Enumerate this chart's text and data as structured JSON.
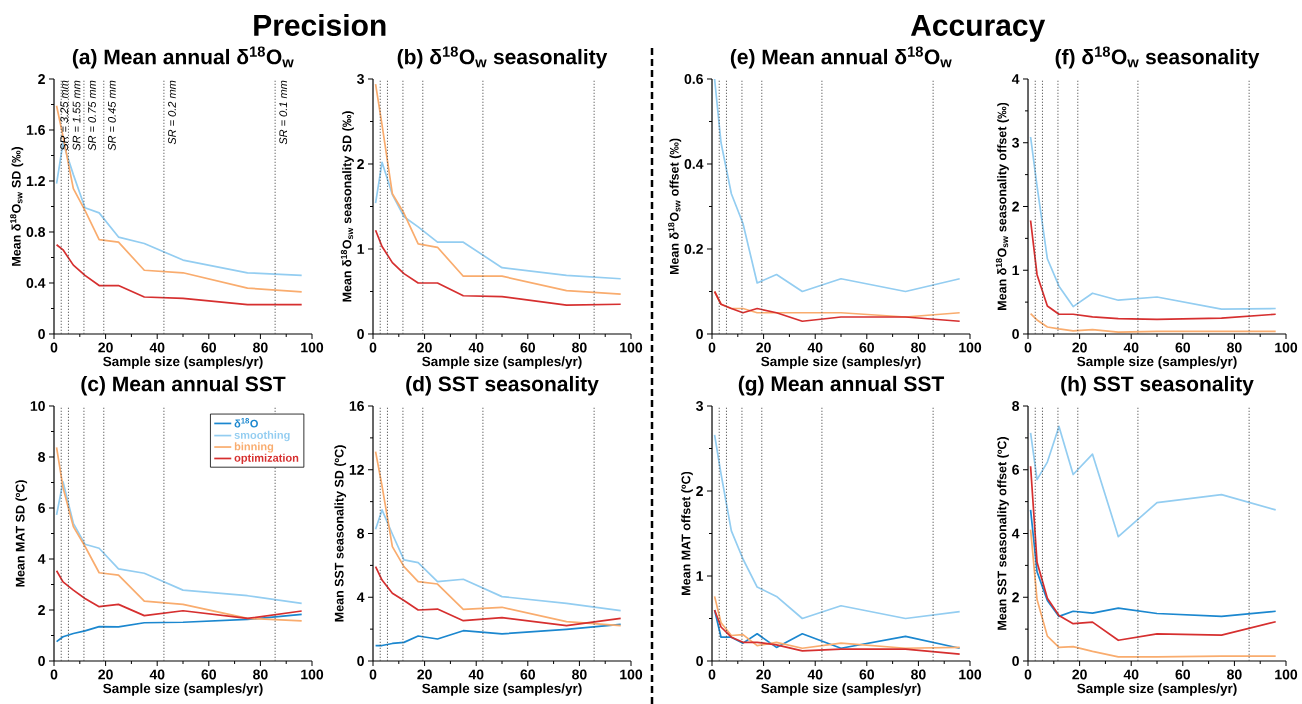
{
  "chart_data": [
    {
      "type": "line",
      "title": "(a) Mean annual δ$^{18}$O$_{w}$",
      "xlabel": "Sample size (samples/yr)",
      "ylabel": "Mean δ$^{18}$O$_{sw}$ SD (‰)",
      "annotations": [
        "Precision",
        {
          "text": "SR = 3.25 mm",
          "x": 2.8,
          "y": 2
        },
        {
          "text": "SR = 1.55 mm",
          "x": 5.6,
          "y": 2
        },
        {
          "text": "SR = 0.75 mm",
          "x": 11.6,
          "y": 2
        },
        {
          "text": "SR = 0.45 mm",
          "x": 19.3,
          "y": 2
        },
        {
          "text": "SR = 0.2 mm",
          "x": 42.6,
          "y": 2
        },
        {
          "text": "SR = 0.1 mm",
          "x": 85.7,
          "y": 2
        }
      ],
      "x": [
        1,
        3.5,
        7.5,
        12,
        17.5,
        25,
        35,
        50,
        75,
        96
      ],
      "xlim": [
        0,
        100
      ],
      "xticks": [
        0,
        20,
        40,
        60,
        80,
        100
      ],
      "ylim": [
        0,
        2
      ],
      "yticks": [
        0,
        0.4,
        0.8,
        1.2,
        1.6,
        2
      ],
      "series": [
        {
          "color": "#93cdf1",
          "values": [
            1.18,
            1.5,
            1.25,
            0.99,
            0.95,
            0.76,
            0.71,
            0.58,
            0.48,
            0.46
          ]
        },
        {
          "color": "#f9ac6e",
          "values": [
            1.79,
            1.55,
            1.14,
            0.97,
            0.74,
            0.72,
            0.5,
            0.48,
            0.36,
            0.33
          ]
        },
        {
          "color": "#d62f2f",
          "values": [
            0.7,
            0.66,
            0.54,
            0.46,
            0.38,
            0.38,
            0.29,
            0.28,
            0.23,
            0.23
          ]
        }
      ],
      "ref_lines": [
        {
          "axis": "x",
          "value": 2.8,
          "line_style": "dotted"
        },
        {
          "axis": "x",
          "value": 5.6,
          "line_style": "dotted"
        },
        {
          "axis": "x",
          "value": 11.6,
          "line_style": "dotted"
        },
        {
          "axis": "x",
          "value": 19.3,
          "line_style": "dotted"
        },
        {
          "axis": "x",
          "value": 42.6,
          "line_style": "dotted"
        },
        {
          "axis": "x",
          "value": 85.7,
          "line_style": "dotted"
        }
      ]
    },
    {
      "type": "line",
      "title": "(b) δ$^{18}$O$_{w}$ seasonality",
      "xlabel": "Sample size (samples/yr)",
      "ylabel": "Mean δ$^{18}$O$_{sw}$ seasonality SD (‰)",
      "x": [
        1,
        3.5,
        7.5,
        12,
        17.5,
        25,
        35,
        50,
        75,
        96
      ],
      "xlim": [
        0,
        100
      ],
      "xticks": [
        0,
        20,
        40,
        60,
        80,
        100
      ],
      "ylim": [
        0,
        3
      ],
      "yticks": [
        0,
        1,
        2,
        3
      ],
      "series": [
        {
          "color": "#93cdf1",
          "values": [
            1.54,
            2.02,
            1.64,
            1.38,
            1.26,
            1.08,
            1.08,
            0.78,
            0.69,
            0.65
          ]
        },
        {
          "color": "#f9ac6e",
          "values": [
            2.94,
            2.46,
            1.65,
            1.42,
            1.06,
            1.02,
            0.68,
            0.68,
            0.51,
            0.47
          ]
        },
        {
          "color": "#d62f2f",
          "values": [
            1.22,
            1.03,
            0.84,
            0.71,
            0.6,
            0.6,
            0.45,
            0.44,
            0.34,
            0.35
          ]
        }
      ],
      "ref_lines": [
        {
          "axis": "x",
          "value": 2.8,
          "line_style": "dotted"
        },
        {
          "axis": "x",
          "value": 5.6,
          "line_style": "dotted"
        },
        {
          "axis": "x",
          "value": 11.6,
          "line_style": "dotted"
        },
        {
          "axis": "x",
          "value": 19.3,
          "line_style": "dotted"
        },
        {
          "axis": "x",
          "value": 42.6,
          "line_style": "dotted"
        },
        {
          "axis": "x",
          "value": 85.7,
          "line_style": "dotted"
        }
      ]
    },
    {
      "type": "line",
      "title": "(c) Mean annual SST",
      "xlabel": "Sample size (samples/yr)",
      "ylabel": "Mean MAT SD (ºC)",
      "legend": "top right",
      "x": [
        1,
        3.5,
        7.5,
        12,
        17.5,
        25,
        35,
        50,
        75,
        96
      ],
      "xlim": [
        0,
        100
      ],
      "xticks": [
        0,
        20,
        40,
        60,
        80,
        100
      ],
      "ylim": [
        0,
        10
      ],
      "yticks": [
        0,
        2,
        4,
        6,
        8,
        10
      ],
      "series": [
        {
          "name": "δ$^{18}$O",
          "color": "#1b87cf",
          "values": [
            0.76,
            0.95,
            1.08,
            1.18,
            1.35,
            1.34,
            1.5,
            1.52,
            1.63,
            1.83
          ]
        },
        {
          "name": "smoothing",
          "color": "#93cdf1",
          "values": [
            5.73,
            7.03,
            5.4,
            4.58,
            4.42,
            3.61,
            3.44,
            2.78,
            2.56,
            2.26
          ]
        },
        {
          "name": "binning",
          "color": "#f9ac6e",
          "values": [
            8.38,
            6.8,
            5.27,
            4.5,
            3.46,
            3.37,
            2.35,
            2.22,
            1.67,
            1.57
          ]
        },
        {
          "name": "optimization",
          "color": "#d62f2f",
          "values": [
            3.54,
            3.1,
            2.78,
            2.45,
            2.13,
            2.22,
            1.78,
            1.97,
            1.67,
            1.96
          ]
        }
      ],
      "ref_lines": [
        {
          "axis": "x",
          "value": 2.8,
          "line_style": "dotted"
        },
        {
          "axis": "x",
          "value": 5.6,
          "line_style": "dotted"
        },
        {
          "axis": "x",
          "value": 11.6,
          "line_style": "dotted"
        },
        {
          "axis": "x",
          "value": 19.3,
          "line_style": "dotted"
        },
        {
          "axis": "x",
          "value": 42.6,
          "line_style": "dotted"
        },
        {
          "axis": "x",
          "value": 85.7,
          "line_style": "dotted"
        }
      ]
    },
    {
      "type": "line",
      "title": "(d) SST seasonality",
      "xlabel": "Sample size (samples/yr)",
      "ylabel": "Mean SST seasonality SD (ºC)",
      "x": [
        1,
        3.5,
        7.5,
        12,
        17.5,
        25,
        35,
        50,
        75,
        96
      ],
      "xlim": [
        0,
        100
      ],
      "xticks": [
        0,
        20,
        40,
        60,
        80,
        100
      ],
      "ylim": [
        0,
        16
      ],
      "yticks": [
        0,
        4,
        8,
        12,
        16
      ],
      "series": [
        {
          "color": "#1b87cf",
          "values": [
            0.96,
            0.97,
            1.1,
            1.17,
            1.57,
            1.38,
            1.9,
            1.7,
            1.99,
            2.3
          ]
        },
        {
          "color": "#93cdf1",
          "values": [
            8.26,
            9.48,
            7.97,
            6.34,
            6.17,
            4.98,
            5.13,
            4.04,
            3.62,
            3.16
          ]
        },
        {
          "color": "#f9ac6e",
          "values": [
            13.14,
            10.98,
            7.18,
            5.92,
            4.98,
            4.83,
            3.24,
            3.37,
            2.47,
            2.22
          ]
        },
        {
          "color": "#d62f2f",
          "values": [
            5.92,
            5.08,
            4.25,
            3.8,
            3.2,
            3.26,
            2.53,
            2.72,
            2.22,
            2.68
          ]
        }
      ],
      "ref_lines": [
        {
          "axis": "x",
          "value": 2.8,
          "line_style": "dotted"
        },
        {
          "axis": "x",
          "value": 5.6,
          "line_style": "dotted"
        },
        {
          "axis": "x",
          "value": 11.6,
          "line_style": "dotted"
        },
        {
          "axis": "x",
          "value": 19.3,
          "line_style": "dotted"
        },
        {
          "axis": "x",
          "value": 42.6,
          "line_style": "dotted"
        },
        {
          "axis": "x",
          "value": 85.7,
          "line_style": "dotted"
        }
      ]
    },
    {
      "type": "line",
      "title": "(e) Mean annual δ$^{18}$O$_{w}$",
      "xlabel": "Sample size (samples/yr)",
      "ylabel": "Mean δ$^{18}$O$_{sw}$ offset (‰)",
      "annotations": [
        "Accuracy"
      ],
      "x": [
        1,
        3.5,
        7.5,
        12,
        17.5,
        25,
        35,
        50,
        75,
        96
      ],
      "xlim": [
        0,
        100
      ],
      "xticks": [
        0,
        20,
        40,
        60,
        80,
        100
      ],
      "ylim": [
        0,
        0.6
      ],
      "yticks": [
        0,
        0.2,
        0.4,
        0.6
      ],
      "series": [
        {
          "color": "#93cdf1",
          "values": [
            0.6,
            0.45,
            0.33,
            0.26,
            0.12,
            0.14,
            0.1,
            0.13,
            0.1,
            0.13
          ]
        },
        {
          "color": "#f9ac6e",
          "values": [
            0.1,
            0.07,
            0.06,
            0.06,
            0.05,
            0.05,
            0.05,
            0.05,
            0.04,
            0.05
          ]
        },
        {
          "color": "#d62f2f",
          "values": [
            0.1,
            0.07,
            0.06,
            0.05,
            0.06,
            0.05,
            0.03,
            0.04,
            0.04,
            0.03
          ]
        }
      ],
      "ref_lines": [
        {
          "axis": "x",
          "value": 2.8,
          "line_style": "dotted"
        },
        {
          "axis": "x",
          "value": 5.6,
          "line_style": "dotted"
        },
        {
          "axis": "x",
          "value": 11.6,
          "line_style": "dotted"
        },
        {
          "axis": "x",
          "value": 19.3,
          "line_style": "dotted"
        },
        {
          "axis": "x",
          "value": 42.6,
          "line_style": "dotted"
        },
        {
          "axis": "x",
          "value": 85.7,
          "line_style": "dotted"
        }
      ]
    },
    {
      "type": "line",
      "title": "(f) δ$^{18}$O$_{w}$ seasonality",
      "xlabel": "Sample size (samples/yr)",
      "ylabel": "Mean δ$^{18}$O$_{sw}$ seasonality offset (‰)",
      "x": [
        1,
        3.5,
        7.5,
        12,
        17.5,
        25,
        35,
        50,
        75,
        96
      ],
      "xlim": [
        0,
        100
      ],
      "xticks": [
        0,
        20,
        40,
        60,
        80,
        100
      ],
      "ylim": [
        0,
        4
      ],
      "yticks": [
        0,
        1,
        2,
        3,
        4
      ],
      "series": [
        {
          "color": "#93cdf1",
          "values": [
            3.09,
            2.32,
            1.18,
            0.75,
            0.43,
            0.64,
            0.53,
            0.58,
            0.39,
            0.4
          ]
        },
        {
          "color": "#f9ac6e",
          "values": [
            0.32,
            0.22,
            0.11,
            0.08,
            0.05,
            0.07,
            0.03,
            0.04,
            0.04,
            0.04
          ]
        },
        {
          "color": "#d62f2f",
          "values": [
            1.78,
            0.93,
            0.44,
            0.31,
            0.31,
            0.27,
            0.24,
            0.23,
            0.25,
            0.31
          ]
        }
      ],
      "ref_lines": [
        {
          "axis": "x",
          "value": 2.8,
          "line_style": "dotted"
        },
        {
          "axis": "x",
          "value": 5.6,
          "line_style": "dotted"
        },
        {
          "axis": "x",
          "value": 11.6,
          "line_style": "dotted"
        },
        {
          "axis": "x",
          "value": 19.3,
          "line_style": "dotted"
        },
        {
          "axis": "x",
          "value": 42.6,
          "line_style": "dotted"
        },
        {
          "axis": "x",
          "value": 85.7,
          "line_style": "dotted"
        }
      ]
    },
    {
      "type": "line",
      "title": "(g) Mean annual SST",
      "xlabel": "Sample size (samples/yr)",
      "ylabel": "Mean MAT offset (ºC)",
      "x": [
        1,
        3.5,
        7.5,
        12,
        17.5,
        25,
        35,
        50,
        75,
        96
      ],
      "xlim": [
        0,
        100
      ],
      "xticks": [
        0,
        20,
        40,
        60,
        80,
        100
      ],
      "ylim": [
        0,
        3
      ],
      "yticks": [
        0,
        1,
        2,
        3
      ],
      "series": [
        {
          "color": "#1b87cf",
          "values": [
            0.6,
            0.28,
            0.28,
            0.21,
            0.32,
            0.16,
            0.32,
            0.15,
            0.29,
            0.15
          ]
        },
        {
          "color": "#93cdf1",
          "values": [
            2.66,
            2.2,
            1.53,
            1.2,
            0.87,
            0.76,
            0.5,
            0.65,
            0.5,
            0.58
          ]
        },
        {
          "color": "#f9ac6e",
          "values": [
            0.76,
            0.45,
            0.3,
            0.31,
            0.18,
            0.22,
            0.15,
            0.21,
            0.15,
            0.16
          ]
        },
        {
          "color": "#d62f2f",
          "values": [
            0.6,
            0.4,
            0.28,
            0.22,
            0.22,
            0.19,
            0.12,
            0.14,
            0.14,
            0.08
          ]
        }
      ],
      "ref_lines": [
        {
          "axis": "x",
          "value": 2.8,
          "line_style": "dotted"
        },
        {
          "axis": "x",
          "value": 5.6,
          "line_style": "dotted"
        },
        {
          "axis": "x",
          "value": 11.6,
          "line_style": "dotted"
        },
        {
          "axis": "x",
          "value": 19.3,
          "line_style": "dotted"
        },
        {
          "axis": "x",
          "value": 42.6,
          "line_style": "dotted"
        },
        {
          "axis": "x",
          "value": 85.7,
          "line_style": "dotted"
        }
      ]
    },
    {
      "type": "line",
      "title": "(h) SST seasonality",
      "xlabel": "Sample size (samples/yr)",
      "ylabel": "Mean SST seasonality offset (ºC)",
      "x": [
        1,
        3.5,
        7.5,
        12,
        17.5,
        25,
        35,
        50,
        75,
        96
      ],
      "xlim": [
        0,
        100
      ],
      "xticks": [
        0,
        20,
        40,
        60,
        80,
        100
      ],
      "ylim": [
        0,
        8
      ],
      "yticks": [
        0,
        2,
        4,
        6,
        8
      ],
      "series": [
        {
          "color": "#1b87cf",
          "values": [
            4.74,
            2.8,
            1.9,
            1.4,
            1.56,
            1.5,
            1.66,
            1.49,
            1.4,
            1.56
          ]
        },
        {
          "color": "#93cdf1",
          "values": [
            7.16,
            5.69,
            6.24,
            7.36,
            5.85,
            6.49,
            3.9,
            4.97,
            5.22,
            4.74
          ]
        },
        {
          "color": "#f9ac6e",
          "values": [
            4.12,
            1.93,
            0.78,
            0.43,
            0.45,
            0.3,
            0.13,
            0.13,
            0.15,
            0.15
          ]
        },
        {
          "color": "#d62f2f",
          "values": [
            6.11,
            3.1,
            1.97,
            1.43,
            1.17,
            1.22,
            0.65,
            0.85,
            0.81,
            1.23
          ]
        }
      ],
      "ref_lines": [
        {
          "axis": "x",
          "value": 2.8,
          "line_style": "dotted"
        },
        {
          "axis": "x",
          "value": 5.6,
          "line_style": "dotted"
        },
        {
          "axis": "x",
          "value": 11.6,
          "line_style": "dotted"
        },
        {
          "axis": "x",
          "value": 19.3,
          "line_style": "dotted"
        },
        {
          "axis": "x",
          "value": 42.6,
          "line_style": "dotted"
        },
        {
          "axis": "x",
          "value": 85.7,
          "line_style": "dotted"
        }
      ]
    }
  ]
}
